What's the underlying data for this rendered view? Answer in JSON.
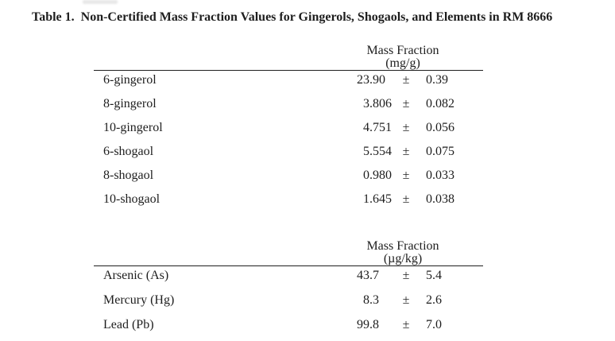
{
  "page": {
    "title": "Table 1.  Non-Certified Mass Fraction Values for Gingerols, Shogaols, and Elements in RM 8666"
  },
  "tables": [
    {
      "header_line1": "Mass Fraction",
      "header_line2": "(mg/g)",
      "pm_symbol": "±",
      "rows": [
        {
          "label": "6-gingerol",
          "value": "23.90",
          "uncertainty": "0.39"
        },
        {
          "label": "8-gingerol",
          "value": "3.806",
          "uncertainty": "0.082"
        },
        {
          "label": "10-gingerol",
          "value": "4.751",
          "uncertainty": "0.056"
        },
        {
          "label": "6-shogaol",
          "value": "5.554",
          "uncertainty": "0.075"
        },
        {
          "label": "8-shogaol",
          "value": "0.980",
          "uncertainty": "0.033"
        },
        {
          "label": "10-shogaol",
          "value": "1.645",
          "uncertainty": "0.038"
        }
      ]
    },
    {
      "header_line1": "Mass Fraction",
      "header_line2": "(µg/kg)",
      "pm_symbol": "±",
      "rows": [
        {
          "label": "Arsenic (As)",
          "value": "43.7",
          "uncertainty": "5.4"
        },
        {
          "label": "Mercury (Hg)",
          "value": "8.3",
          "uncertainty": "2.6"
        },
        {
          "label": "Lead (Pb)",
          "value": "99.8",
          "uncertainty": "7.0"
        }
      ]
    }
  ]
}
